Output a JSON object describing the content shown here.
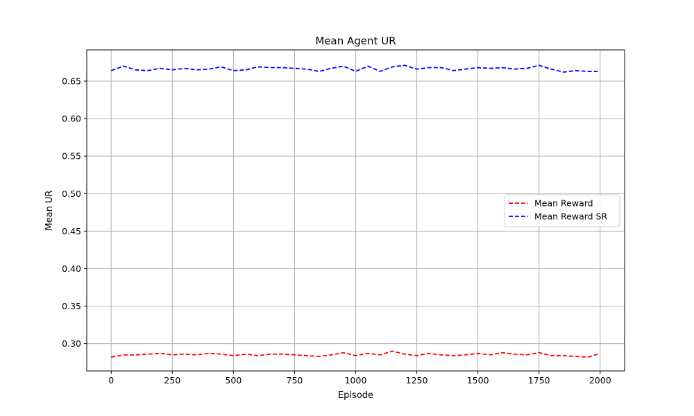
{
  "chart_data": {
    "type": "line",
    "title": "Mean Agent UR",
    "xlabel": "Episode",
    "ylabel": "Mean UR",
    "xlim": [
      -100,
      2100
    ],
    "ylim": [
      0.2636,
      0.6916
    ],
    "xticks": [
      0,
      250,
      500,
      750,
      1000,
      1250,
      1500,
      1750,
      2000
    ],
    "xtick_labels": [
      "0",
      "250",
      "500",
      "750",
      "1000",
      "1250",
      "1500",
      "1750",
      "2000"
    ],
    "yticks": [
      0.3,
      0.35,
      0.4,
      0.45,
      0.5,
      0.55,
      0.6,
      0.65
    ],
    "ytick_labels": [
      "0.30",
      "0.35",
      "0.40",
      "0.45",
      "0.50",
      "0.55",
      "0.60",
      "0.65"
    ],
    "grid": true,
    "legend_position": "center-right",
    "x": [
      0,
      50,
      100,
      150,
      200,
      250,
      300,
      350,
      400,
      450,
      500,
      550,
      600,
      650,
      700,
      750,
      800,
      850,
      900,
      950,
      1000,
      1050,
      1100,
      1150,
      1200,
      1250,
      1300,
      1350,
      1400,
      1450,
      1500,
      1550,
      1600,
      1650,
      1700,
      1750,
      1800,
      1850,
      1900,
      1950,
      1990
    ],
    "series": [
      {
        "name": "Mean Reward",
        "color": "#ff0000",
        "style": "dashed",
        "values": [
          0.282,
          0.285,
          0.285,
          0.286,
          0.287,
          0.285,
          0.286,
          0.285,
          0.287,
          0.286,
          0.284,
          0.286,
          0.284,
          0.286,
          0.286,
          0.285,
          0.284,
          0.283,
          0.285,
          0.288,
          0.284,
          0.287,
          0.285,
          0.29,
          0.286,
          0.284,
          0.287,
          0.285,
          0.284,
          0.285,
          0.287,
          0.285,
          0.288,
          0.286,
          0.285,
          0.288,
          0.284,
          0.284,
          0.283,
          0.282,
          0.286
        ]
      },
      {
        "name": "Mean Reward SR",
        "color": "#0000ff",
        "style": "dashed",
        "values": [
          0.664,
          0.67,
          0.665,
          0.664,
          0.667,
          0.665,
          0.667,
          0.665,
          0.666,
          0.669,
          0.664,
          0.665,
          0.669,
          0.668,
          0.668,
          0.667,
          0.666,
          0.663,
          0.667,
          0.67,
          0.663,
          0.67,
          0.663,
          0.669,
          0.671,
          0.666,
          0.668,
          0.668,
          0.664,
          0.666,
          0.668,
          0.667,
          0.668,
          0.666,
          0.667,
          0.671,
          0.666,
          0.662,
          0.664,
          0.663,
          0.663
        ]
      }
    ]
  }
}
